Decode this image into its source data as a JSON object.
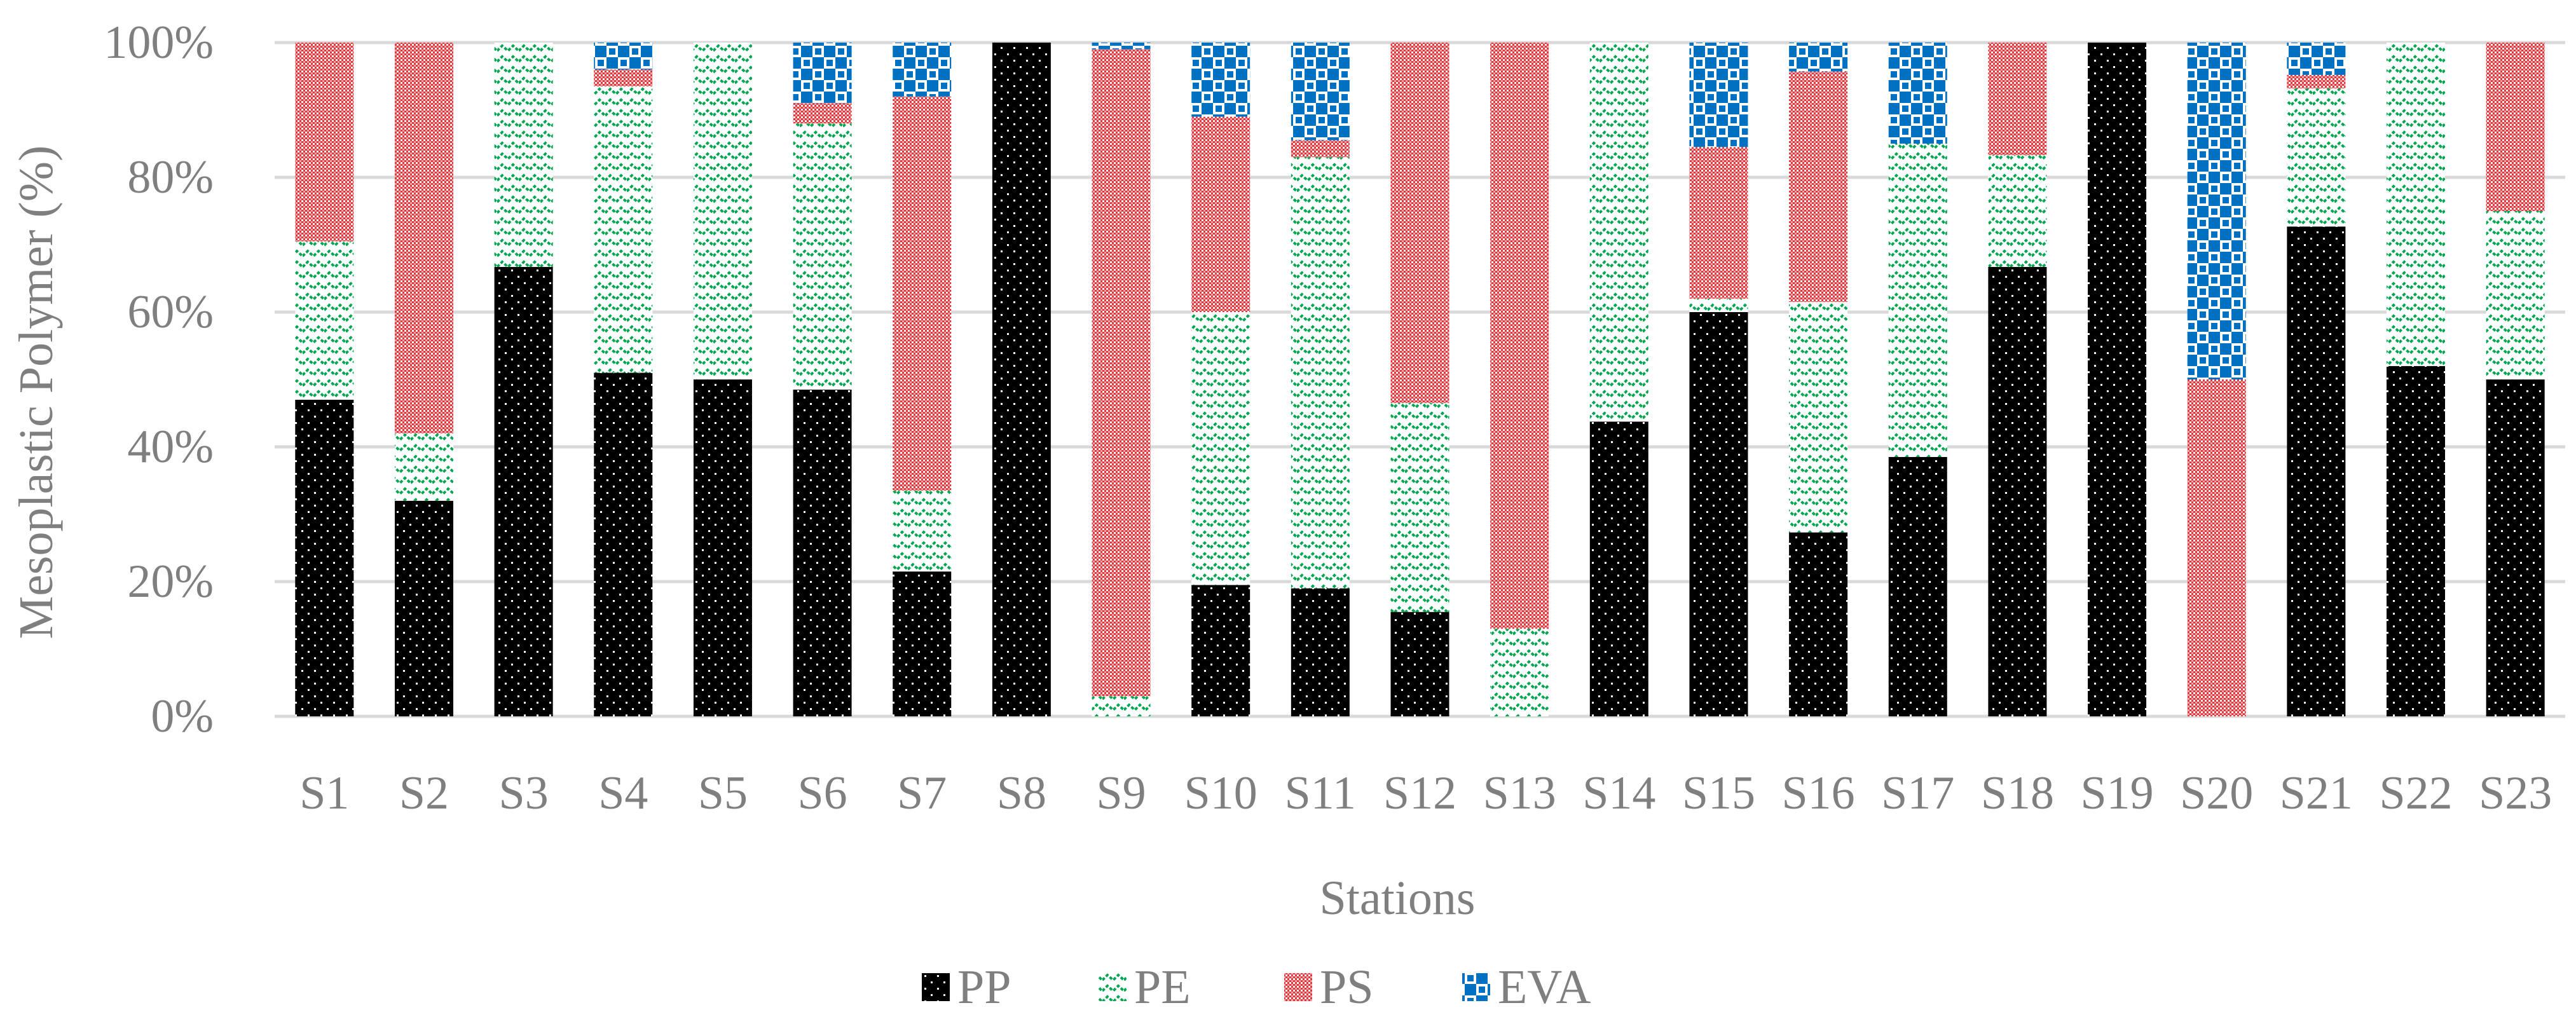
{
  "chart_data": {
    "type": "bar",
    "stacked": true,
    "xlabel": "Stations",
    "ylabel": "Mesoplastic Polymer (%)",
    "ylim": [
      0,
      100
    ],
    "y_tick_labels": [
      "0%",
      "20%",
      "40%",
      "60%",
      "80%",
      "100%"
    ],
    "grid": "horizontal",
    "legend_position": "bottom",
    "categories": [
      "S1",
      "S2",
      "S3",
      "S4",
      "S5",
      "S6",
      "S7",
      "S8",
      "S9",
      "S10",
      "S11",
      "S12",
      "S13",
      "S14",
      "S15",
      "S16",
      "S17",
      "S18",
      "S19",
      "S20",
      "S21",
      "S22",
      "S23"
    ],
    "series": [
      {
        "name": "PP",
        "color": "#000000",
        "pattern": "dots",
        "values": [
          47,
          32,
          66.7,
          51,
          50,
          48.5,
          21.5,
          100,
          0,
          19.5,
          19,
          15.5,
          0,
          43.75,
          60,
          27.3,
          38.5,
          66.7,
          100,
          0,
          72.7,
          52,
          50
        ]
      },
      {
        "name": "PE",
        "color": "#00a550",
        "pattern": "zigzag",
        "values": [
          23.5,
          10,
          33.3,
          42.5,
          50,
          39.5,
          12,
          0,
          3,
          40.5,
          64,
          31,
          13,
          56.25,
          2,
          34.2,
          46.5,
          16.6,
          0,
          0,
          20.5,
          48,
          25
        ]
      },
      {
        "name": "PS",
        "color": "#e8343b",
        "pattern": "checker",
        "values": [
          29.5,
          58,
          0,
          2.5,
          0,
          3,
          58.5,
          0,
          96,
          29,
          2.5,
          53.5,
          87,
          0,
          22.5,
          34.2,
          0,
          16.7,
          0,
          50,
          2,
          0,
          25
        ]
      },
      {
        "name": "EVA",
        "color": "#0070c0",
        "pattern": "blocks",
        "values": [
          0,
          0,
          0,
          4,
          0,
          9,
          8,
          0,
          1,
          11,
          14.5,
          0,
          0,
          0,
          15.5,
          4.3,
          15,
          0,
          0,
          50,
          4.8,
          0,
          0
        ]
      }
    ]
  }
}
